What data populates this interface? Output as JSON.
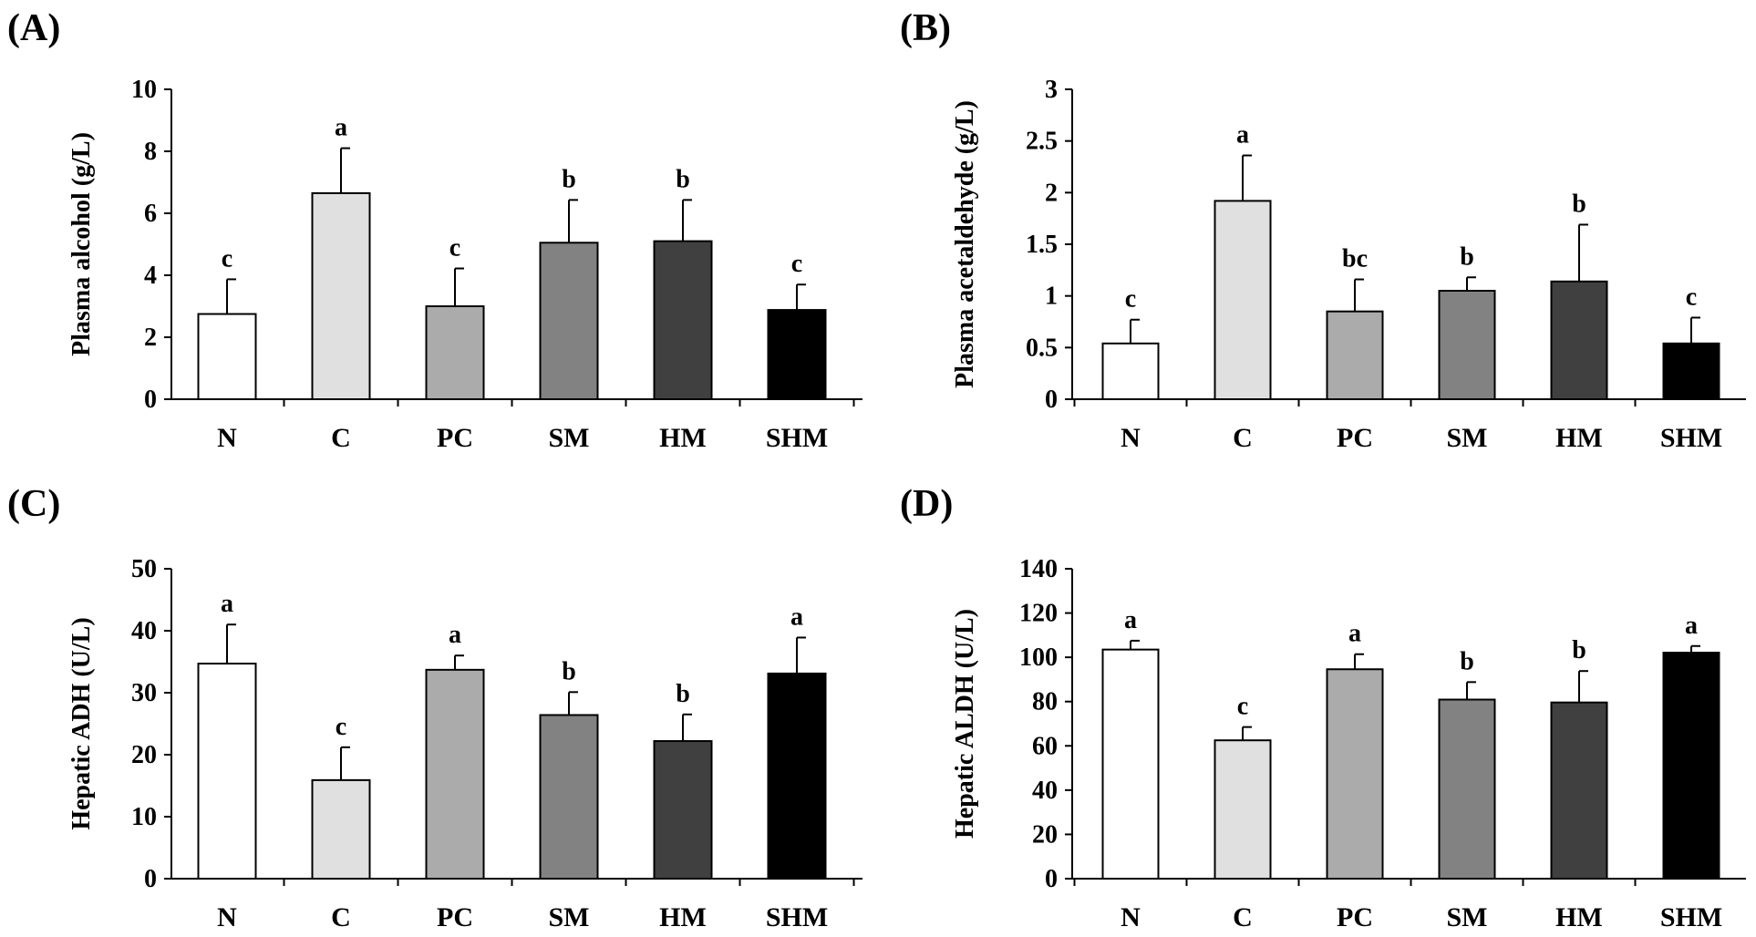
{
  "chart_data": [
    {
      "panel_label": "(A)",
      "type": "bar",
      "categories": [
        "N",
        "C",
        "PC",
        "SM",
        "HM",
        "SHM"
      ],
      "values": [
        2.75,
        6.65,
        3.0,
        5.05,
        5.1,
        2.88
      ],
      "errors": [
        1.12,
        1.45,
        1.22,
        1.38,
        1.33,
        0.82
      ],
      "letters": [
        "c",
        "a",
        "c",
        "b",
        "b",
        "c"
      ],
      "ylabel": "Plasma alcohol (g/L)",
      "xlabel": "",
      "ylim": [
        0,
        10
      ],
      "yticks": [
        0,
        2,
        4,
        6,
        8,
        10
      ],
      "ytick_labels": [
        "0",
        "2",
        "4",
        "6",
        "8",
        "10"
      ],
      "bar_colors": [
        "#ffffff",
        "#e0e0e0",
        "#ababab",
        "#828282",
        "#404040",
        "#000000"
      ],
      "grid": false
    },
    {
      "panel_label": "(B)",
      "type": "bar",
      "categories": [
        "N",
        "C",
        "PC",
        "SM",
        "HM",
        "SHM"
      ],
      "values": [
        0.54,
        1.92,
        0.85,
        1.05,
        1.14,
        0.54
      ],
      "errors": [
        0.23,
        0.44,
        0.31,
        0.13,
        0.55,
        0.25
      ],
      "letters": [
        "c",
        "a",
        "bc",
        "b",
        "b",
        "c"
      ],
      "ylabel": "Plasma acetaldehyde (g/L)",
      "xlabel": "",
      "ylim": [
        0,
        3
      ],
      "yticks": [
        0,
        0.5,
        1,
        1.5,
        2,
        2.5,
        3
      ],
      "ytick_labels": [
        "0",
        "0.5",
        "1",
        "1.5",
        "2",
        "2.5",
        "3"
      ],
      "bar_colors": [
        "#ffffff",
        "#e0e0e0",
        "#ababab",
        "#828282",
        "#404040",
        "#000000"
      ],
      "grid": false
    },
    {
      "panel_label": "(C)",
      "type": "bar",
      "categories": [
        "N",
        "C",
        "PC",
        "SM",
        "HM",
        "SHM"
      ],
      "values": [
        34.7,
        15.9,
        33.7,
        26.4,
        22.2,
        33.1
      ],
      "errors": [
        6.3,
        5.3,
        2.3,
        3.7,
        4.3,
        5.8
      ],
      "letters": [
        "a",
        "c",
        "a",
        "b",
        "b",
        "a"
      ],
      "ylabel": "Hepatic ADH (U/L)",
      "xlabel": "",
      "ylim": [
        0,
        50
      ],
      "yticks": [
        0,
        10,
        20,
        30,
        40,
        50
      ],
      "ytick_labels": [
        "0",
        "10",
        "20",
        "30",
        "40",
        "50"
      ],
      "bar_colors": [
        "#ffffff",
        "#e0e0e0",
        "#ababab",
        "#828282",
        "#404040",
        "#000000"
      ],
      "grid": false
    },
    {
      "panel_label": "(D)",
      "type": "bar",
      "categories": [
        "N",
        "C",
        "PC",
        "SM",
        "HM",
        "SHM"
      ],
      "values": [
        103.5,
        62.5,
        94.6,
        80.9,
        79.6,
        102.1
      ],
      "errors": [
        4.0,
        6.0,
        6.8,
        7.9,
        14.2,
        3.0
      ],
      "letters": [
        "a",
        "c",
        "a",
        "b",
        "b",
        "a"
      ],
      "ylabel": "Hepatic ALDH (U/L)",
      "xlabel": "",
      "ylim": [
        0,
        140
      ],
      "yticks": [
        0,
        20,
        40,
        60,
        80,
        100,
        120,
        140
      ],
      "ytick_labels": [
        "0",
        "20",
        "40",
        "60",
        "80",
        "100",
        "120",
        "140"
      ],
      "bar_colors": [
        "#ffffff",
        "#e0e0e0",
        "#ababab",
        "#828282",
        "#404040",
        "#000000"
      ],
      "grid": false
    }
  ]
}
